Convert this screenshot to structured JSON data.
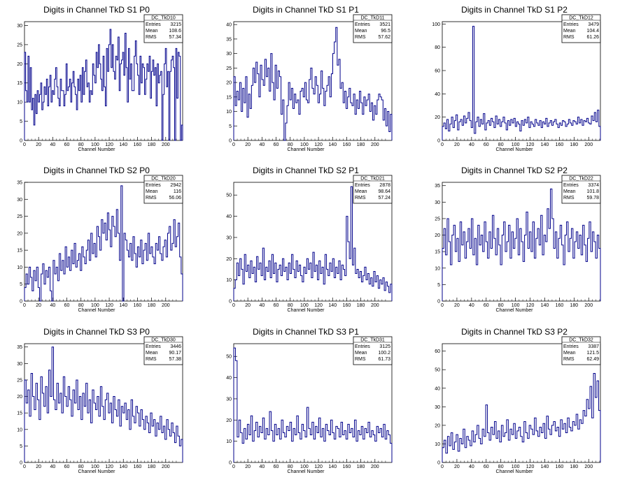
{
  "chart_data": [
    {
      "type": "histogram",
      "title": "Digits in Channel TkD S1 P0",
      "xlabel": "Channel Number",
      "xlim": [
        0,
        224
      ],
      "ylim": [
        0,
        31
      ],
      "xticks": [
        0,
        20,
        40,
        60,
        80,
        100,
        120,
        140,
        160,
        180,
        200
      ],
      "yticks": [
        0,
        5,
        10,
        15,
        20,
        25,
        30
      ],
      "stats": {
        "name": "DC_TkD10",
        "entries": "3215",
        "mean": "108.6",
        "rms": "57.34"
      },
      "values": [
        23,
        13,
        10,
        22,
        10,
        19,
        8,
        11,
        4,
        12,
        7,
        13,
        10,
        12,
        15,
        8,
        10,
        14,
        12,
        16,
        9,
        14,
        17,
        10,
        13,
        12,
        16,
        19,
        14,
        11,
        9,
        16,
        13,
        13,
        9,
        12,
        20,
        13,
        14,
        16,
        10,
        15,
        18,
        14,
        12,
        8,
        16,
        13,
        17,
        10,
        19,
        12,
        18,
        21,
        14,
        15,
        10,
        13,
        12,
        20,
        17,
        15,
        23,
        19,
        25,
        20,
        16,
        13,
        22,
        14,
        9,
        24,
        18,
        25,
        29,
        19,
        25,
        18,
        16,
        22,
        21,
        27,
        13,
        20,
        21,
        23,
        17,
        28,
        19,
        10,
        24,
        16,
        20,
        13,
        13,
        22,
        26,
        20,
        17,
        12,
        22,
        15,
        20,
        19,
        12,
        16,
        20,
        18,
        22,
        11,
        18,
        21,
        17,
        19,
        9,
        20,
        15,
        17,
        18,
        0,
        12,
        20,
        24,
        14,
        18,
        0,
        18,
        21,
        22,
        19,
        0,
        24,
        11,
        23,
        22,
        0,
        4
      ]
    },
    {
      "type": "histogram",
      "title": "Digits in Channel TkD S1 P1",
      "xlabel": "Channel Number",
      "xlim": [
        0,
        224
      ],
      "ylim": [
        0,
        41
      ],
      "xticks": [
        0,
        20,
        40,
        60,
        80,
        100,
        120,
        140,
        160,
        180,
        200
      ],
      "yticks": [
        0,
        5,
        10,
        15,
        20,
        25,
        30,
        35,
        40
      ],
      "stats": {
        "name": "DC_TkD11",
        "entries": "3521",
        "mean": "96.5",
        "rms": "57.62"
      },
      "values": [
        22,
        12,
        17,
        14,
        20,
        10,
        18,
        13,
        22,
        8,
        16,
        11,
        19,
        25,
        20,
        27,
        23,
        15,
        26,
        21,
        19,
        28,
        22,
        25,
        17,
        30,
        20,
        14,
        26,
        18,
        24,
        22,
        9,
        14,
        0,
        6,
        12,
        20,
        14,
        18,
        11,
        16,
        13,
        14,
        9,
        17,
        18,
        15,
        20,
        14,
        13,
        21,
        25,
        18,
        16,
        22,
        19,
        13,
        16,
        24,
        18,
        12,
        17,
        19,
        22,
        15,
        23,
        30,
        34,
        39,
        26,
        28,
        18,
        20,
        13,
        17,
        11,
        15,
        18,
        13,
        12,
        16,
        9,
        14,
        11,
        17,
        13,
        9,
        15,
        12,
        14,
        16,
        10,
        13,
        7,
        12,
        9,
        14,
        16,
        15,
        14,
        7,
        11,
        5,
        10,
        3,
        9
      ]
    },
    {
      "type": "histogram",
      "title": "Digits in Channel TkD S1 P2",
      "xlabel": "Channel Number",
      "xlim": [
        0,
        216
      ],
      "ylim": [
        0,
        102
      ],
      "xticks": [
        0,
        20,
        40,
        60,
        80,
        100,
        120,
        140,
        160,
        180,
        200
      ],
      "yticks": [
        0,
        20,
        40,
        60,
        80,
        100
      ],
      "stats": {
        "name": "DC_TkD12",
        "entries": "3479",
        "mean": "104.4",
        "rms": "61.26"
      },
      "values": [
        12,
        15,
        10,
        18,
        8,
        14,
        20,
        11,
        17,
        22,
        9,
        16,
        18,
        13,
        21,
        15,
        19,
        24,
        17,
        11,
        98,
        6,
        16,
        20,
        12,
        18,
        14,
        23,
        9,
        15,
        17,
        13,
        19,
        16,
        11,
        21,
        14,
        18,
        12,
        16,
        20,
        15,
        9,
        17,
        13,
        18,
        15,
        19,
        12,
        16,
        14,
        8,
        17,
        13,
        18,
        15,
        20,
        11,
        16,
        14,
        12,
        18,
        15,
        13,
        17,
        11,
        16,
        14,
        19,
        12,
        15,
        17,
        13,
        16,
        18,
        14,
        11,
        15,
        13,
        17,
        16,
        12,
        14,
        18,
        15,
        13,
        17,
        16,
        14,
        20,
        15,
        18,
        13,
        17,
        16,
        19,
        15,
        14,
        21,
        17,
        24,
        16,
        26,
        12
      ]
    },
    {
      "type": "histogram",
      "title": "Digits in Channel TkD S2 P0",
      "xlabel": "Channel Number",
      "xlim": [
        0,
        224
      ],
      "ylim": [
        0,
        35
      ],
      "xticks": [
        0,
        20,
        40,
        60,
        80,
        100,
        120,
        140,
        160,
        180,
        200
      ],
      "yticks": [
        0,
        5,
        10,
        15,
        20,
        25,
        30,
        35
      ],
      "stats": {
        "name": "DC_TkD20",
        "entries": "2942",
        "mean": "116",
        "rms": "56.06"
      },
      "values": [
        4,
        8,
        5,
        10,
        7,
        3,
        9,
        6,
        10,
        4,
        0,
        8,
        11,
        5,
        9,
        7,
        10,
        3,
        0,
        12,
        8,
        10,
        6,
        14,
        9,
        12,
        8,
        16,
        10,
        13,
        9,
        15,
        11,
        17,
        10,
        12,
        14,
        9,
        16,
        13,
        11,
        15,
        18,
        12,
        20,
        14,
        17,
        13,
        22,
        19,
        15,
        24,
        20,
        23,
        18,
        26,
        21,
        16,
        25,
        22,
        19,
        27,
        20,
        12,
        34,
        0,
        20,
        18,
        15,
        13,
        17,
        12,
        19,
        14,
        10,
        16,
        13,
        18,
        11,
        15,
        17,
        12,
        20,
        14,
        16,
        13,
        11,
        17,
        15,
        19,
        14,
        12,
        16,
        18,
        13,
        20,
        22,
        15,
        17,
        24,
        16,
        19,
        23,
        13,
        8
      ]
    },
    {
      "type": "histogram",
      "title": "Digits in Channel TkD S2 P1",
      "xlabel": "Channel Number",
      "xlim": [
        0,
        224
      ],
      "ylim": [
        0,
        56
      ],
      "xticks": [
        0,
        20,
        40,
        60,
        80,
        100,
        120,
        140,
        160,
        180,
        200
      ],
      "yticks": [
        0,
        10,
        20,
        30,
        40,
        50
      ],
      "stats": {
        "name": "DC_TkD21",
        "entries": "2878",
        "mean": "98.64",
        "rms": "57.24"
      },
      "values": [
        6,
        10,
        18,
        12,
        20,
        15,
        8,
        22,
        14,
        17,
        11,
        19,
        13,
        16,
        9,
        21,
        15,
        18,
        12,
        25,
        10,
        16,
        14,
        19,
        11,
        22,
        13,
        18,
        9,
        15,
        17,
        12,
        20,
        14,
        16,
        10,
        18,
        13,
        22,
        15,
        11,
        19,
        14,
        17,
        12,
        9,
        16,
        13,
        20,
        15,
        18,
        11,
        23,
        14,
        17,
        10,
        19,
        13,
        16,
        8,
        22,
        15,
        12,
        18,
        14,
        20,
        11,
        16,
        13,
        19,
        10,
        17,
        15,
        12,
        40,
        28,
        20,
        54,
        17,
        25,
        13,
        15,
        11,
        14,
        9,
        12,
        16,
        10,
        13,
        8,
        11,
        7,
        14,
        9,
        12,
        6,
        10,
        8,
        11,
        5,
        9,
        7,
        4,
        8
      ]
    },
    {
      "type": "histogram",
      "title": "Digits in Channel TkD S2 P2",
      "xlabel": "Channel Number",
      "xlim": [
        0,
        216
      ],
      "ylim": [
        0,
        36
      ],
      "xticks": [
        0,
        20,
        40,
        60,
        80,
        100,
        120,
        140,
        160,
        180,
        200
      ],
      "yticks": [
        0,
        5,
        10,
        15,
        20,
        25,
        30,
        35
      ],
      "stats": {
        "name": "DC_TkD22",
        "entries": "3374",
        "mean": "101.8",
        "rms": "59.78"
      },
      "values": [
        16,
        22,
        14,
        25,
        18,
        11,
        20,
        23,
        15,
        19,
        12,
        24,
        17,
        21,
        13,
        18,
        22,
        16,
        25,
        14,
        19,
        11,
        23,
        17,
        20,
        15,
        24,
        18,
        13,
        21,
        16,
        26,
        19,
        14,
        22,
        17,
        11,
        20,
        24,
        15,
        18,
        23,
        13,
        21,
        16,
        19,
        25,
        14,
        22,
        18,
        12,
        20,
        27,
        16,
        21,
        15,
        24,
        13,
        19,
        22,
        17,
        26,
        14,
        20,
        18,
        28,
        22,
        34,
        25,
        16,
        21,
        13,
        19,
        23,
        17,
        11,
        20,
        24,
        15,
        19,
        22,
        13,
        18,
        21,
        16,
        20,
        14,
        23,
        17,
        12,
        19,
        24,
        15,
        21,
        18,
        13,
        20,
        16
      ]
    },
    {
      "type": "histogram",
      "title": "Digits in Channel TkD S3 P0",
      "xlabel": "Channel Number",
      "xlim": [
        0,
        224
      ],
      "ylim": [
        0,
        36
      ],
      "xticks": [
        0,
        20,
        40,
        60,
        80,
        100,
        120,
        140,
        160,
        180,
        200
      ],
      "yticks": [
        0,
        5,
        10,
        15,
        20,
        25,
        30,
        35
      ],
      "stats": {
        "name": "DC_TkD30",
        "entries": "3446",
        "mean": "90.17",
        "rms": "57.38"
      },
      "values": [
        25,
        18,
        22,
        14,
        27,
        20,
        16,
        24,
        19,
        13,
        26,
        21,
        17,
        23,
        15,
        28,
        20,
        35,
        19,
        16,
        24,
        18,
        21,
        15,
        26,
        20,
        17,
        23,
        19,
        14,
        22,
        18,
        25,
        16,
        20,
        13,
        21,
        17,
        24,
        15,
        19,
        12,
        22,
        18,
        16,
        20,
        14,
        23,
        17,
        13,
        19,
        21,
        15,
        18,
        12,
        20,
        16,
        14,
        19,
        11,
        17,
        15,
        18,
        13,
        16,
        10,
        19,
        14,
        12,
        17,
        15,
        11,
        16,
        13,
        10,
        14,
        12,
        9,
        15,
        11,
        13,
        8,
        12,
        10,
        14,
        9,
        11,
        7,
        13,
        10,
        8,
        12,
        9,
        6,
        11,
        8,
        5,
        7
      ]
    },
    {
      "type": "histogram",
      "title": "Digits in Channel TkD S3 P1",
      "xlabel": "Channel Number",
      "xlim": [
        0,
        224
      ],
      "ylim": [
        0,
        56
      ],
      "xticks": [
        0,
        20,
        40,
        60,
        80,
        100,
        120,
        140,
        160,
        180,
        200
      ],
      "yticks": [
        0,
        10,
        20,
        30,
        40,
        50
      ],
      "stats": {
        "name": "DC_TkD31",
        "entries": "3125",
        "mean": "100.2",
        "rms": "61.73"
      },
      "values": [
        54,
        48,
        12,
        20,
        14,
        9,
        16,
        11,
        18,
        13,
        22,
        10,
        15,
        19,
        12,
        17,
        14,
        21,
        11,
        16,
        13,
        24,
        15,
        10,
        18,
        13,
        16,
        11,
        20,
        14,
        12,
        17,
        15,
        19,
        10,
        16,
        13,
        22,
        14,
        11,
        18,
        15,
        12,
        26,
        16,
        13,
        19,
        11,
        17,
        14,
        21,
        12,
        16,
        10,
        18,
        15,
        13,
        20,
        14,
        11,
        17,
        16,
        12,
        19,
        13,
        15,
        11,
        18,
        14,
        16,
        12,
        20,
        10,
        15,
        13,
        17,
        11,
        16,
        14,
        19,
        12,
        15,
        13,
        10,
        17,
        14,
        16,
        12,
        18,
        11,
        15,
        13,
        9
      ]
    },
    {
      "type": "histogram",
      "title": "Digits in Channel TkD S3 P2",
      "xlabel": "Channel Number",
      "xlim": [
        0,
        216
      ],
      "ylim": [
        0,
        64
      ],
      "xticks": [
        0,
        20,
        40,
        60,
        80,
        100,
        120,
        140,
        160,
        180,
        200
      ],
      "yticks": [
        0,
        10,
        20,
        30,
        40,
        50,
        60
      ],
      "stats": {
        "name": "DC_TkD32",
        "entries": "3387",
        "mean": "121.5",
        "rms": "62.49"
      },
      "values": [
        8,
        12,
        5,
        14,
        9,
        16,
        7,
        11,
        15,
        6,
        13,
        10,
        18,
        8,
        14,
        12,
        9,
        17,
        11,
        15,
        20,
        13,
        10,
        18,
        14,
        31,
        16,
        12,
        19,
        15,
        22,
        13,
        17,
        11,
        20,
        14,
        16,
        23,
        12,
        18,
        15,
        21,
        13,
        17,
        19,
        14,
        11,
        22,
        16,
        13,
        20,
        18,
        15,
        24,
        17,
        14,
        19,
        16,
        21,
        13,
        25,
        18,
        15,
        20,
        22,
        17,
        19,
        14,
        23,
        18,
        21,
        16,
        24,
        19,
        17,
        22,
        20,
        26,
        18,
        23,
        21,
        28,
        25,
        34,
        29,
        41,
        24,
        48,
        35,
        44,
        28
      ]
    }
  ],
  "axis_color": "#000000",
  "series_color": "#00008b",
  "stats_labels": {
    "entries": "Entries",
    "mean": "Mean",
    "rms": "RMS"
  }
}
